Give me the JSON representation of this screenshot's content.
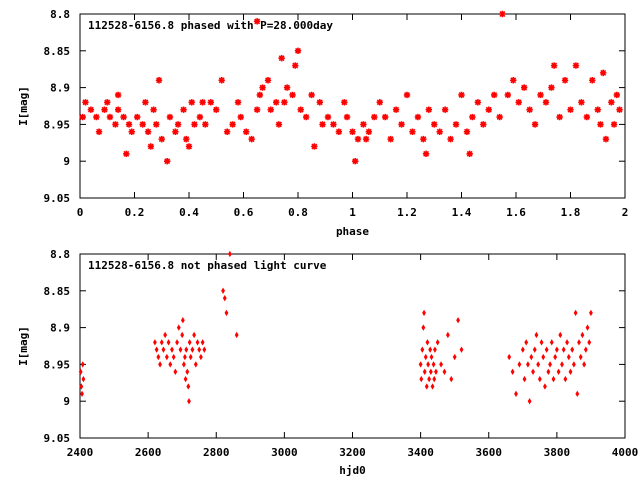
{
  "chart_data": [
    {
      "type": "scatter",
      "title": "112528-6156.8 phased with P=28.000day",
      "xlabel": "phase",
      "ylabel": "I[mag]",
      "xlim": [
        0,
        2
      ],
      "ylim": [
        9.05,
        8.8
      ],
      "y_inverted": true,
      "grid": false,
      "marker_color": "#ff0000",
      "marker": "star",
      "x_ticks": [
        "0",
        "0.2",
        "0.4",
        "0.6",
        "0.8",
        "1",
        "1.2",
        "1.4",
        "1.6",
        "1.8",
        "2"
      ],
      "y_ticks": [
        "8.8",
        "8.85",
        "8.9",
        "8.95",
        "9",
        "9.05"
      ],
      "points": [
        [
          0.01,
          8.94
        ],
        [
          0.02,
          8.92
        ],
        [
          0.04,
          8.93
        ],
        [
          0.06,
          8.94
        ],
        [
          0.07,
          8.96
        ],
        [
          0.09,
          8.93
        ],
        [
          0.1,
          8.92
        ],
        [
          0.11,
          8.94
        ],
        [
          0.13,
          8.95
        ],
        [
          0.14,
          8.91
        ],
        [
          0.16,
          8.94
        ],
        [
          0.17,
          8.99
        ],
        [
          0.18,
          8.95
        ],
        [
          0.19,
          8.96
        ],
        [
          0.21,
          8.94
        ],
        [
          0.23,
          8.95
        ],
        [
          0.24,
          8.92
        ],
        [
          0.25,
          8.96
        ],
        [
          0.26,
          8.98
        ],
        [
          0.27,
          8.93
        ],
        [
          0.28,
          8.95
        ],
        [
          0.29,
          8.89
        ],
        [
          0.3,
          8.97
        ],
        [
          0.32,
          9.0
        ],
        [
          0.33,
          8.94
        ],
        [
          0.35,
          8.96
        ],
        [
          0.36,
          8.95
        ],
        [
          0.38,
          8.93
        ],
        [
          0.39,
          8.97
        ],
        [
          0.41,
          8.92
        ],
        [
          0.42,
          8.95
        ],
        [
          0.44,
          8.94
        ],
        [
          0.45,
          8.92
        ],
        [
          0.46,
          8.95
        ],
        [
          0.48,
          8.92
        ],
        [
          0.5,
          8.93
        ],
        [
          0.52,
          8.89
        ],
        [
          0.54,
          8.96
        ],
        [
          0.56,
          8.95
        ],
        [
          0.58,
          8.92
        ],
        [
          0.59,
          8.94
        ],
        [
          0.61,
          8.96
        ],
        [
          0.63,
          8.97
        ],
        [
          0.65,
          8.93
        ],
        [
          0.66,
          8.91
        ],
        [
          0.67,
          8.9
        ],
        [
          0.69,
          8.89
        ],
        [
          0.7,
          8.93
        ],
        [
          0.72,
          8.92
        ],
        [
          0.73,
          8.95
        ],
        [
          0.74,
          8.86
        ],
        [
          0.75,
          8.92
        ],
        [
          0.76,
          8.9
        ],
        [
          0.78,
          8.91
        ],
        [
          0.79,
          8.87
        ],
        [
          0.8,
          8.85
        ],
        [
          0.81,
          8.93
        ],
        [
          0.83,
          8.94
        ],
        [
          0.85,
          8.91
        ],
        [
          0.86,
          8.98
        ],
        [
          0.88,
          8.92
        ],
        [
          0.89,
          8.95
        ],
        [
          0.91,
          8.94
        ],
        [
          0.93,
          8.95
        ],
        [
          0.95,
          8.96
        ],
        [
          0.97,
          8.92
        ],
        [
          0.98,
          8.94
        ],
        [
          1.0,
          8.96
        ],
        [
          1.01,
          9.0
        ],
        [
          1.02,
          8.97
        ],
        [
          1.04,
          8.95
        ],
        [
          1.06,
          8.96
        ],
        [
          1.08,
          8.94
        ],
        [
          1.1,
          8.92
        ],
        [
          1.12,
          8.94
        ],
        [
          1.14,
          8.97
        ],
        [
          1.16,
          8.93
        ],
        [
          1.18,
          8.95
        ],
        [
          1.2,
          8.91
        ],
        [
          1.22,
          8.96
        ],
        [
          1.24,
          8.94
        ],
        [
          1.26,
          8.97
        ],
        [
          1.28,
          8.93
        ],
        [
          1.3,
          8.95
        ],
        [
          1.32,
          8.96
        ],
        [
          1.34,
          8.93
        ],
        [
          1.36,
          8.97
        ],
        [
          1.38,
          8.95
        ],
        [
          1.4,
          8.91
        ],
        [
          1.42,
          8.96
        ],
        [
          1.44,
          8.94
        ],
        [
          1.46,
          8.92
        ],
        [
          1.48,
          8.95
        ],
        [
          1.5,
          8.93
        ],
        [
          1.52,
          8.91
        ],
        [
          1.54,
          8.94
        ],
        [
          1.55,
          8.8
        ],
        [
          1.57,
          8.91
        ],
        [
          1.59,
          8.89
        ],
        [
          1.61,
          8.92
        ],
        [
          1.63,
          8.9
        ],
        [
          1.65,
          8.93
        ],
        [
          1.67,
          8.95
        ],
        [
          1.69,
          8.91
        ],
        [
          1.71,
          8.92
        ],
        [
          1.73,
          8.9
        ],
        [
          1.74,
          8.87
        ],
        [
          1.76,
          8.94
        ],
        [
          1.78,
          8.89
        ],
        [
          1.8,
          8.93
        ],
        [
          1.82,
          8.87
        ],
        [
          1.84,
          8.92
        ],
        [
          1.86,
          8.94
        ],
        [
          1.88,
          8.89
        ],
        [
          1.9,
          8.93
        ],
        [
          1.91,
          8.95
        ],
        [
          1.92,
          8.88
        ],
        [
          1.93,
          8.97
        ],
        [
          1.95,
          8.92
        ],
        [
          1.96,
          8.95
        ],
        [
          1.97,
          8.91
        ],
        [
          1.98,
          8.93
        ],
        [
          0.65,
          8.81
        ],
        [
          0.4,
          8.98
        ],
        [
          0.14,
          8.93
        ],
        [
          1.05,
          8.97
        ],
        [
          1.27,
          8.99
        ],
        [
          1.43,
          8.99
        ]
      ]
    },
    {
      "type": "scatter",
      "title": "112528-6156.8 not phased light curve",
      "xlabel": "hjd0",
      "ylabel": "I[mag]",
      "xlim": [
        2400,
        4000
      ],
      "ylim": [
        9.05,
        8.8
      ],
      "y_inverted": true,
      "grid": false,
      "marker_color": "#ff0000",
      "marker": "diamond",
      "x_ticks": [
        "2400",
        "2600",
        "2800",
        "3000",
        "3200",
        "3400",
        "3600",
        "3800",
        "4000"
      ],
      "y_ticks": [
        "8.8",
        "8.85",
        "8.9",
        "8.95",
        "9",
        "9.05"
      ],
      "points": [
        [
          2402,
          8.96
        ],
        [
          2404,
          8.98
        ],
        [
          2406,
          8.99
        ],
        [
          2408,
          8.95
        ],
        [
          2410,
          8.97
        ],
        [
          2620,
          8.92
        ],
        [
          2625,
          8.93
        ],
        [
          2630,
          8.94
        ],
        [
          2635,
          8.95
        ],
        [
          2640,
          8.92
        ],
        [
          2645,
          8.93
        ],
        [
          2650,
          8.91
        ],
        [
          2655,
          8.94
        ],
        [
          2660,
          8.92
        ],
        [
          2665,
          8.95
        ],
        [
          2670,
          8.93
        ],
        [
          2675,
          8.94
        ],
        [
          2680,
          8.96
        ],
        [
          2685,
          8.92
        ],
        [
          2690,
          8.9
        ],
        [
          2695,
          8.93
        ],
        [
          2700,
          8.91
        ],
        [
          2702,
          8.89
        ],
        [
          2705,
          8.95
        ],
        [
          2708,
          8.94
        ],
        [
          2710,
          8.97
        ],
        [
          2712,
          8.93
        ],
        [
          2715,
          8.96
        ],
        [
          2718,
          8.98
        ],
        [
          2720,
          9.0
        ],
        [
          2722,
          8.92
        ],
        [
          2725,
          8.94
        ],
        [
          2730,
          8.93
        ],
        [
          2735,
          8.91
        ],
        [
          2740,
          8.95
        ],
        [
          2745,
          8.92
        ],
        [
          2750,
          8.93
        ],
        [
          2755,
          8.94
        ],
        [
          2760,
          8.92
        ],
        [
          2765,
          8.93
        ],
        [
          2820,
          8.85
        ],
        [
          2825,
          8.86
        ],
        [
          2830,
          8.88
        ],
        [
          2840,
          8.8
        ],
        [
          2860,
          8.91
        ],
        [
          3400,
          8.95
        ],
        [
          3402,
          8.97
        ],
        [
          3405,
          8.93
        ],
        [
          3408,
          8.9
        ],
        [
          3410,
          8.88
        ],
        [
          3412,
          8.96
        ],
        [
          3415,
          8.94
        ],
        [
          3418,
          8.98
        ],
        [
          3420,
          8.92
        ],
        [
          3422,
          8.95
        ],
        [
          3425,
          8.97
        ],
        [
          3428,
          8.93
        ],
        [
          3430,
          8.96
        ],
        [
          3432,
          8.94
        ],
        [
          3435,
          8.98
        ],
        [
          3438,
          8.95
        ],
        [
          3440,
          8.97
        ],
        [
          3442,
          8.93
        ],
        [
          3445,
          8.96
        ],
        [
          3450,
          8.92
        ],
        [
          3460,
          8.95
        ],
        [
          3470,
          8.96
        ],
        [
          3480,
          8.91
        ],
        [
          3490,
          8.97
        ],
        [
          3500,
          8.94
        ],
        [
          3510,
          8.89
        ],
        [
          3520,
          8.93
        ],
        [
          3660,
          8.94
        ],
        [
          3670,
          8.96
        ],
        [
          3680,
          8.99
        ],
        [
          3690,
          8.95
        ],
        [
          3700,
          8.93
        ],
        [
          3705,
          8.97
        ],
        [
          3710,
          8.92
        ],
        [
          3715,
          8.95
        ],
        [
          3720,
          9.0
        ],
        [
          3725,
          8.94
        ],
        [
          3730,
          8.96
        ],
        [
          3735,
          8.93
        ],
        [
          3740,
          8.91
        ],
        [
          3745,
          8.95
        ],
        [
          3750,
          8.97
        ],
        [
          3755,
          8.92
        ],
        [
          3760,
          8.94
        ],
        [
          3765,
          8.98
        ],
        [
          3770,
          8.93
        ],
        [
          3775,
          8.96
        ],
        [
          3780,
          8.95
        ],
        [
          3785,
          8.92
        ],
        [
          3790,
          8.97
        ],
        [
          3795,
          8.94
        ],
        [
          3800,
          8.93
        ],
        [
          3805,
          8.96
        ],
        [
          3810,
          8.91
        ],
        [
          3815,
          8.95
        ],
        [
          3820,
          8.93
        ],
        [
          3825,
          8.97
        ],
        [
          3830,
          8.92
        ],
        [
          3835,
          8.94
        ],
        [
          3840,
          8.96
        ],
        [
          3845,
          8.93
        ],
        [
          3850,
          8.95
        ],
        [
          3855,
          8.88
        ],
        [
          3860,
          8.99
        ],
        [
          3865,
          8.92
        ],
        [
          3870,
          8.94
        ],
        [
          3875,
          8.91
        ],
        [
          3880,
          8.95
        ],
        [
          3885,
          8.93
        ],
        [
          3890,
          8.9
        ],
        [
          3895,
          8.92
        ],
        [
          3900,
          8.88
        ]
      ]
    }
  ]
}
